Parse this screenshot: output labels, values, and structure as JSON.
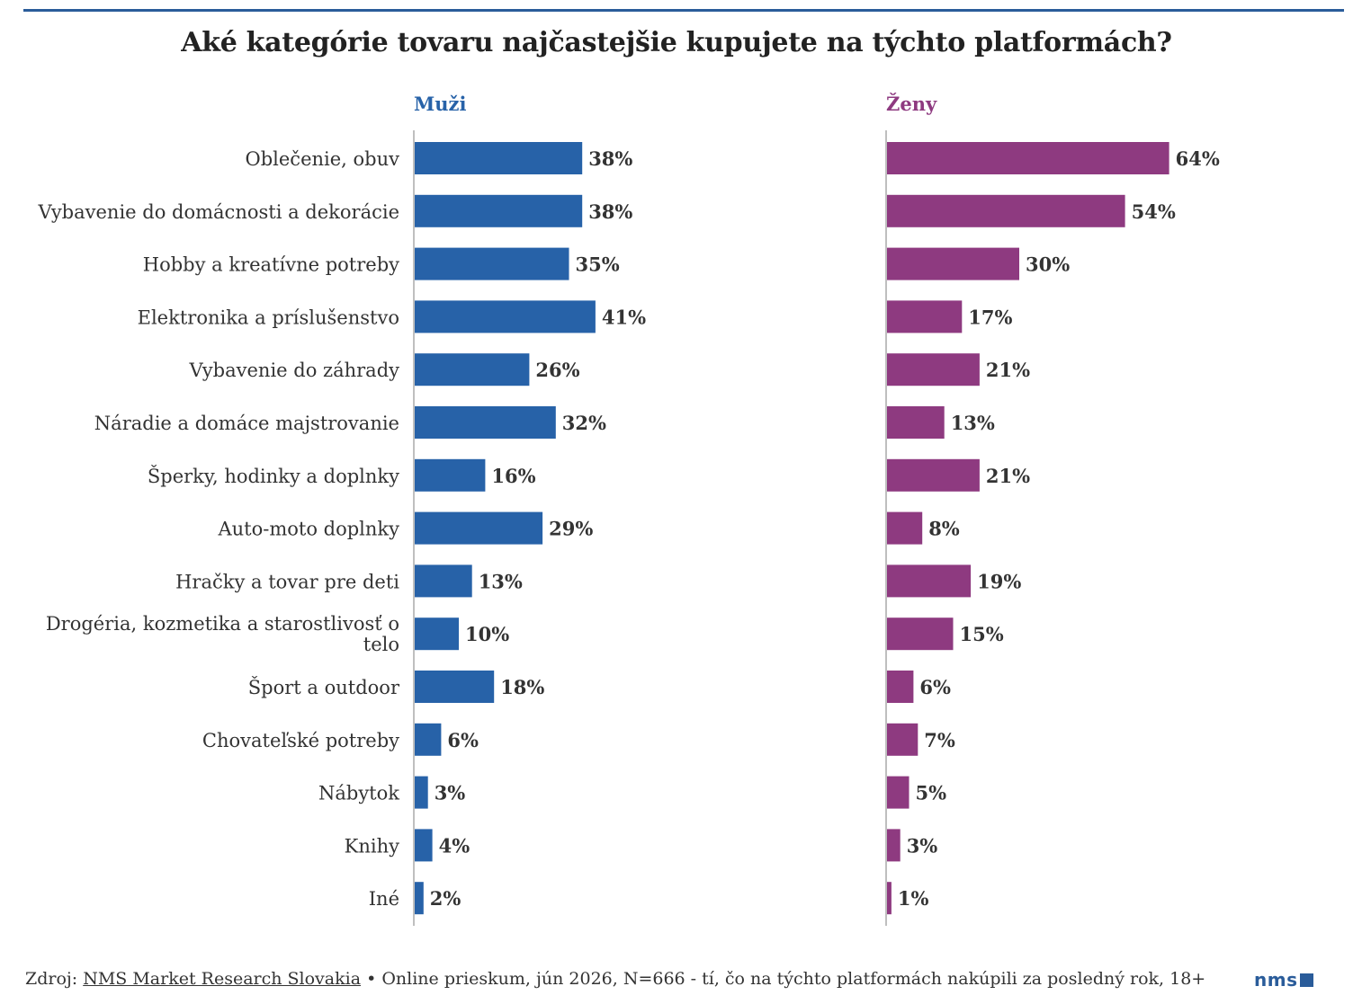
{
  "title": "Aké kategórie tovaru najčastejšie kupujete na týchto platformách?",
  "colors": {
    "men": "#2762a8",
    "women": "#8e3a80",
    "rule": "#2a5c9a",
    "axis": "#aaaaaa"
  },
  "chart_data": {
    "type": "bar",
    "orientation": "horizontal",
    "categories": [
      "Oblečenie, obuv",
      "Vybavenie do domácnosti a dekorácie",
      "Hobby a kreatívne potreby",
      "Elektronika a príslušenstvo",
      "Vybavenie do záhrady",
      "Náradie a domáce majstrovanie",
      "Šperky, hodinky a doplnky",
      "Auto-moto doplnky",
      "Hračky a tovar pre deti",
      "Drogéria, kozmetika a starostlivosť o telo",
      "Šport a outdoor",
      "Chovateľské potreby",
      "Nábytok",
      "Knihy",
      "Iné"
    ],
    "series": [
      {
        "name": "Muži",
        "values": [
          38,
          38,
          35,
          41,
          26,
          32,
          16,
          29,
          13,
          10,
          18,
          6,
          3,
          4,
          2
        ]
      },
      {
        "name": "Ženy",
        "values": [
          64,
          54,
          30,
          17,
          21,
          13,
          21,
          8,
          19,
          15,
          6,
          7,
          5,
          3,
          1
        ]
      }
    ],
    "unit": "%",
    "xlim": [
      0,
      100
    ]
  },
  "footer": {
    "prefix": "Zdroj: ",
    "source_link": "NMS Market Research Slovakia",
    "suffix": " • Online prieskum, jún 2026, N=666 - tí, čo na týchto platformách nakúpili za posledný rok, 18+"
  },
  "logo": {
    "text": "nms"
  }
}
